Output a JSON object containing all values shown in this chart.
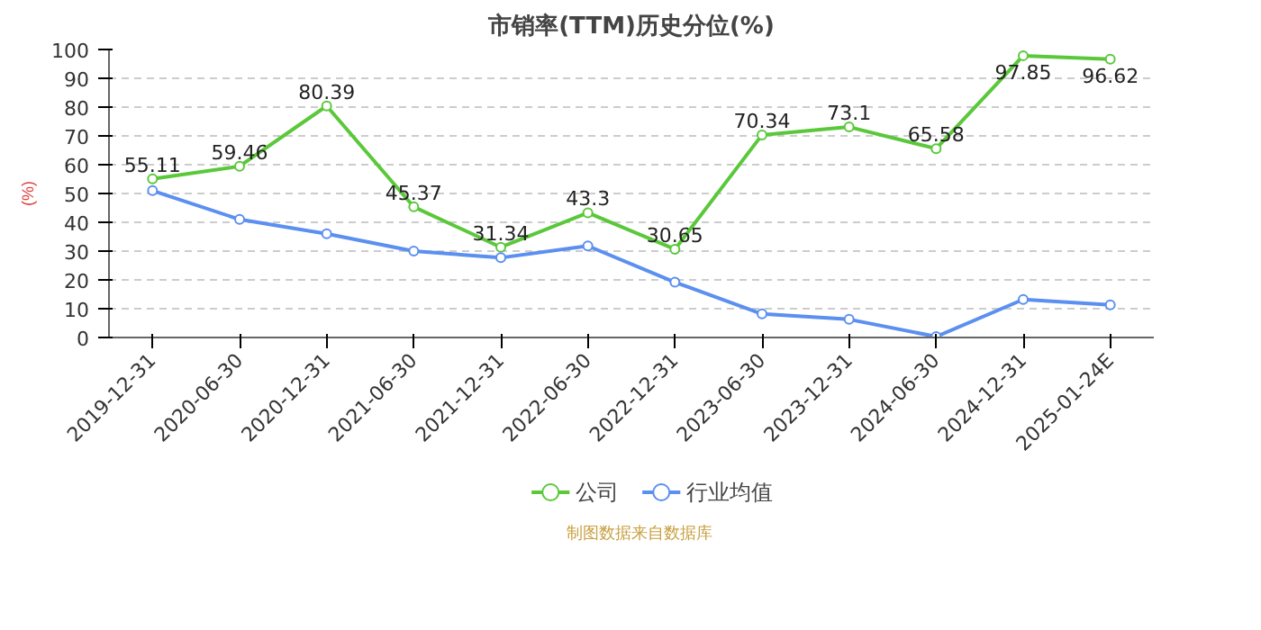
{
  "chart_data": {
    "type": "line",
    "title": "市销率(TTM)历史分位(%)",
    "ylabel": "(%)",
    "categories": [
      "2019-12-31",
      "2020-06-30",
      "2020-12-31",
      "2021-06-30",
      "2021-12-31",
      "2022-06-30",
      "2022-12-31",
      "2023-06-30",
      "2023-12-31",
      "2024-06-30",
      "2024-12-31",
      "2025-01-24E"
    ],
    "series": [
      {
        "name": "公司",
        "color": "#5ac83a",
        "values": [
          55.11,
          59.46,
          80.39,
          45.37,
          31.34,
          43.3,
          30.65,
          70.34,
          73.1,
          65.58,
          97.85,
          96.62
        ],
        "value_labels": [
          "55.11",
          "59.46",
          "80.39",
          "45.37",
          "31.34",
          "43.3",
          "30.65",
          "70.34",
          "73.1",
          "65.58",
          "97.85",
          "96.62"
        ]
      },
      {
        "name": "行业均值",
        "color": "#5b8ff0",
        "values": [
          51,
          41,
          36,
          30,
          27.7,
          31.8,
          19.2,
          8.2,
          6.3,
          0.3,
          13.2,
          11.3
        ]
      }
    ],
    "ylim": [
      0,
      100
    ],
    "yticks": [
      0,
      10,
      20,
      30,
      40,
      50,
      60,
      70,
      80,
      90,
      100
    ],
    "grid": "y",
    "legend": "bottom",
    "marker": "circle",
    "line_style": "solid",
    "annotations": [
      "制图数据来自数据库"
    ]
  }
}
